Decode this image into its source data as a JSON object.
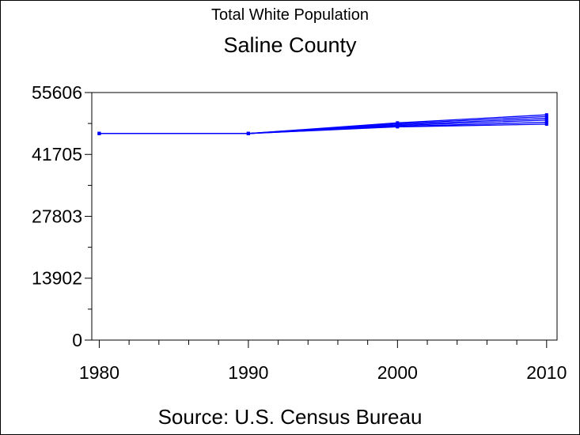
{
  "chart_data": {
    "type": "line",
    "title": "Total White Population",
    "subtitle": "Saline County",
    "source": "Source: U.S. Census Bureau",
    "xlabel": "",
    "ylabel": "",
    "xlim": [
      1979.5,
      2010.7
    ],
    "ylim": [
      0,
      55606
    ],
    "x_ticks": [
      1980,
      1990,
      2000,
      2010
    ],
    "x_tick_labels": [
      "1980",
      "1990",
      "2000",
      "2010"
    ],
    "x_minor_ticks": [
      1982,
      1984,
      1986,
      1988,
      1992,
      1994,
      1996,
      1998,
      2002,
      2004,
      2006,
      2008
    ],
    "y_ticks": [
      0,
      13902,
      27803,
      41705,
      55606
    ],
    "y_tick_labels": [
      "0",
      "13902",
      "27803",
      "41705",
      "55606"
    ],
    "y_minor_ticks": [
      6951,
      20852,
      34754,
      48655
    ],
    "grid": false,
    "color": "#0000ff",
    "series": [
      {
        "values": [
          [
            1980,
            46400
          ],
          [
            1990,
            46400
          ],
          [
            2000,
            48800
          ],
          [
            2010,
            50600
          ]
        ]
      },
      {
        "values": [
          [
            1980,
            46400
          ],
          [
            1990,
            46400
          ],
          [
            2000,
            48600
          ],
          [
            2010,
            50200
          ]
        ]
      },
      {
        "values": [
          [
            1980,
            46400
          ],
          [
            1990,
            46400
          ],
          [
            2000,
            48400
          ],
          [
            2010,
            49800
          ]
        ]
      },
      {
        "values": [
          [
            1980,
            46400
          ],
          [
            1990,
            46400
          ],
          [
            2000,
            48200
          ],
          [
            2010,
            49400
          ]
        ]
      },
      {
        "values": [
          [
            1980,
            46400
          ],
          [
            1990,
            46400
          ],
          [
            2000,
            48000
          ],
          [
            2010,
            48900
          ]
        ]
      },
      {
        "values": [
          [
            1980,
            46400
          ],
          [
            1990,
            46400
          ],
          [
            2000,
            47900
          ],
          [
            2010,
            48500
          ]
        ]
      }
    ]
  }
}
